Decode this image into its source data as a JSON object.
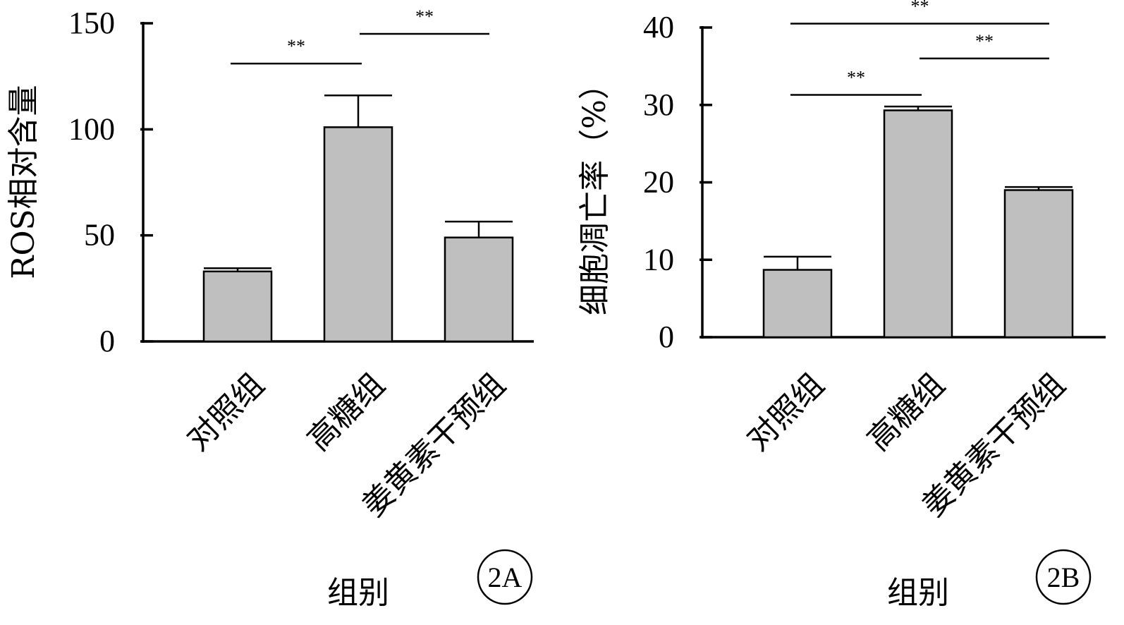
{
  "chart_data": [
    {
      "type": "bar",
      "panel_label": "2A",
      "categories": [
        "对照组",
        "高糖组",
        "姜黄素干预组"
      ],
      "values": [
        33,
        101,
        49
      ],
      "errors": [
        1.5,
        15,
        7.5
      ],
      "ylabel": "ROS相对含量",
      "xlabel": "组别",
      "ylim": [
        0,
        150
      ],
      "yticks": [
        0,
        50,
        100,
        150
      ],
      "grid": false,
      "significance": [
        {
          "from": 0,
          "to": 1,
          "label": "**",
          "y": 131
        },
        {
          "from": 1,
          "to": 2,
          "label": "**",
          "y": 145
        }
      ]
    },
    {
      "type": "bar",
      "panel_label": "2B",
      "categories": [
        "对照组",
        "高糖组",
        "姜黄素干预组"
      ],
      "values": [
        8.7,
        29.3,
        19
      ],
      "errors": [
        1.7,
        0.5,
        0.4
      ],
      "ylabel": "细胞凋亡率（%）",
      "xlabel": "组别",
      "ylim": [
        0,
        40
      ],
      "yticks": [
        0,
        10,
        20,
        30,
        40
      ],
      "grid": false,
      "significance": [
        {
          "from": 0,
          "to": 1,
          "label": "**",
          "y": 31.3
        },
        {
          "from": 1,
          "to": 2,
          "label": "**",
          "y": 36
        },
        {
          "from": 0,
          "to": 2,
          "label": "**",
          "y": 40.5
        }
      ]
    }
  ]
}
